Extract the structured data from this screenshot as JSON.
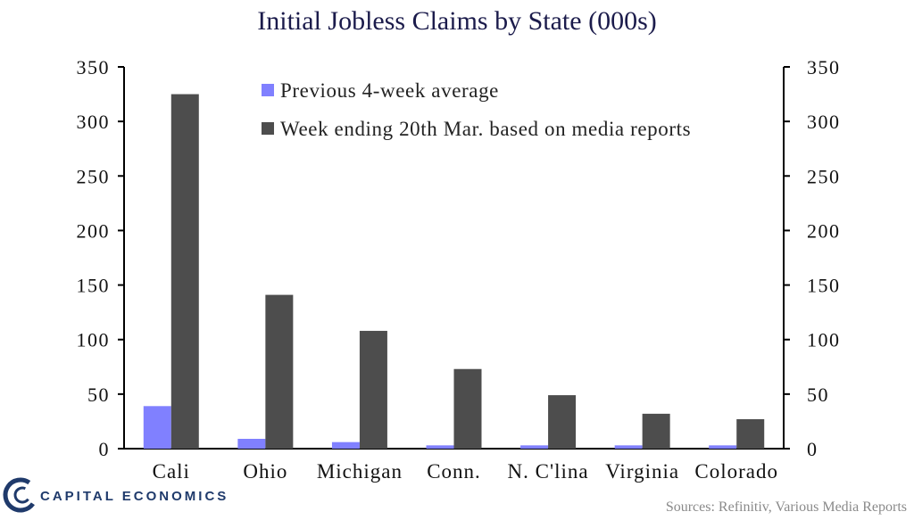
{
  "title": "Initial Jobless Claims by State (000s)",
  "source": "Sources: Refinitiv, Various Media Reports",
  "logo": {
    "text": "CAPITAL ECONOMICS"
  },
  "chart_data": {
    "type": "bar",
    "title": "Initial Jobless Claims by State (000s)",
    "categories": [
      "Cali",
      "Ohio",
      "Michigan",
      "Conn.",
      "N. C'lina",
      "Virginia",
      "Colorado"
    ],
    "series": [
      {
        "name": "Previous 4-week average",
        "color": "#8080ff",
        "values": [
          39,
          9,
          6,
          3,
          3,
          3,
          3
        ]
      },
      {
        "name": "Week ending 20th Mar. based on media reports",
        "color": "#4d4d4d",
        "values": [
          325,
          141,
          108,
          73,
          49,
          32,
          27
        ]
      }
    ],
    "ylim": [
      0,
      350
    ],
    "yticks": [
      "0",
      "50",
      "100",
      "150",
      "200",
      "250",
      "300",
      "350"
    ],
    "xlabel": "",
    "ylabel": "",
    "secondary_axis": true,
    "grid": false,
    "legend_position": "top-center"
  }
}
